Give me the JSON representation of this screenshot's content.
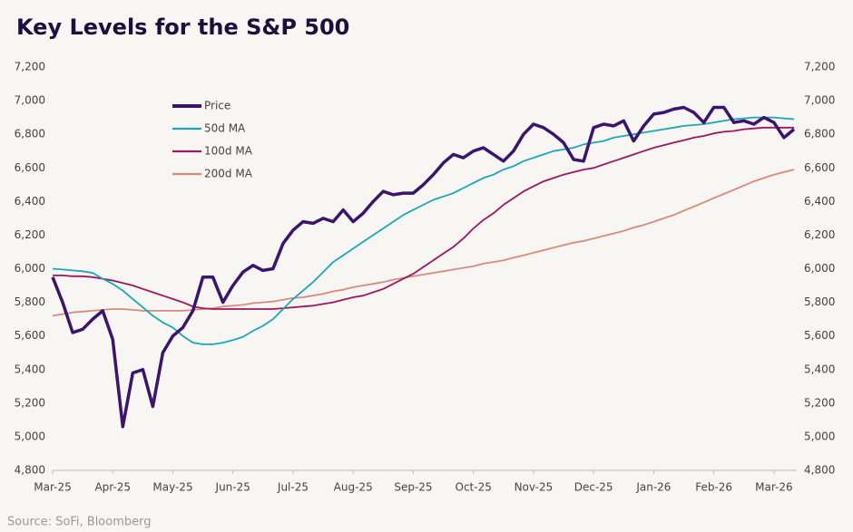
{
  "chart_data": {
    "type": "line",
    "title": "Key Levels for the S&P 500",
    "source": "Source: SoFi, Bloomberg",
    "categories": [
      "Mar-25",
      null,
      null,
      null,
      null,
      null,
      "Apr-25",
      null,
      null,
      null,
      null,
      null,
      "May-25",
      null,
      null,
      null,
      null,
      null,
      "Jun-25",
      null,
      null,
      null,
      null,
      null,
      "Jul-25",
      null,
      null,
      null,
      null,
      null,
      "Aug-25",
      null,
      null,
      null,
      null,
      null,
      "Sep-25",
      null,
      null,
      null,
      null,
      null,
      "Oct-25",
      null,
      null,
      null,
      null,
      null,
      "Nov-25",
      null,
      null,
      null,
      null,
      null,
      "Dec-25",
      null,
      null,
      null,
      null,
      null,
      "Jan-26",
      null,
      null,
      null,
      null,
      null,
      "Feb-26",
      null,
      null,
      null,
      null,
      null,
      "Mar-26",
      null,
      null
    ],
    "series": [
      {
        "name": "Price",
        "color": "#3a1470",
        "width": 3.5,
        "values": [
          5950,
          5800,
          5620,
          5640,
          5700,
          5750,
          5580,
          5060,
          5380,
          5400,
          5180,
          5500,
          5600,
          5650,
          5750,
          5950,
          5950,
          5800,
          5900,
          5980,
          6020,
          5990,
          6000,
          6150,
          6230,
          6280,
          6270,
          6300,
          6280,
          6350,
          6280,
          6330,
          6400,
          6460,
          6440,
          6450,
          6450,
          6500,
          6560,
          6630,
          6680,
          6660,
          6700,
          6720,
          6680,
          6640,
          6700,
          6800,
          6860,
          6840,
          6800,
          6750,
          6650,
          6640,
          6840,
          6860,
          6850,
          6880,
          6760,
          6850,
          6920,
          6930,
          6950,
          6960,
          6930,
          6870,
          6960,
          6960,
          6870,
          6880,
          6860,
          6900,
          6870,
          6780,
          6830
        ]
      },
      {
        "name": "50d MA",
        "color": "#1aa8b8",
        "width": 1.8,
        "values": [
          6000,
          5995,
          5990,
          5985,
          5975,
          5940,
          5910,
          5870,
          5820,
          5770,
          5720,
          5680,
          5650,
          5600,
          5560,
          5550,
          5550,
          5560,
          5575,
          5595,
          5630,
          5660,
          5700,
          5760,
          5820,
          5870,
          5920,
          5980,
          6040,
          6080,
          6120,
          6160,
          6200,
          6240,
          6280,
          6320,
          6350,
          6380,
          6410,
          6430,
          6450,
          6480,
          6510,
          6540,
          6560,
          6590,
          6610,
          6640,
          6660,
          6680,
          6700,
          6710,
          6720,
          6740,
          6750,
          6760,
          6780,
          6790,
          6800,
          6810,
          6820,
          6830,
          6840,
          6850,
          6855,
          6860,
          6870,
          6880,
          6890,
          6895,
          6900,
          6900,
          6900,
          6895,
          6890
        ]
      },
      {
        "name": "100d MA",
        "color": "#a0155f",
        "width": 1.8,
        "values": [
          5960,
          5960,
          5955,
          5955,
          5950,
          5940,
          5930,
          5915,
          5900,
          5880,
          5860,
          5840,
          5820,
          5800,
          5775,
          5765,
          5760,
          5760,
          5760,
          5760,
          5760,
          5760,
          5760,
          5765,
          5770,
          5775,
          5780,
          5790,
          5800,
          5815,
          5830,
          5840,
          5860,
          5880,
          5910,
          5940,
          5970,
          6010,
          6050,
          6090,
          6130,
          6180,
          6240,
          6290,
          6330,
          6380,
          6420,
          6460,
          6490,
          6520,
          6540,
          6560,
          6575,
          6590,
          6600,
          6620,
          6640,
          6660,
          6680,
          6700,
          6720,
          6735,
          6750,
          6765,
          6780,
          6790,
          6805,
          6815,
          6820,
          6830,
          6835,
          6840,
          6840,
          6840,
          6840
        ]
      },
      {
        "name": "200d MA",
        "color": "#d98a7a",
        "width": 1.8,
        "values": [
          5720,
          5730,
          5740,
          5745,
          5750,
          5755,
          5760,
          5760,
          5755,
          5750,
          5750,
          5750,
          5750,
          5750,
          5755,
          5760,
          5765,
          5775,
          5780,
          5785,
          5795,
          5800,
          5805,
          5815,
          5825,
          5830,
          5840,
          5850,
          5865,
          5875,
          5890,
          5900,
          5910,
          5920,
          5935,
          5945,
          5955,
          5965,
          5975,
          5985,
          5995,
          6005,
          6015,
          6030,
          6040,
          6050,
          6065,
          6080,
          6095,
          6110,
          6125,
          6140,
          6155,
          6165,
          6180,
          6195,
          6210,
          6225,
          6245,
          6260,
          6280,
          6300,
          6320,
          6345,
          6370,
          6395,
          6420,
          6445,
          6470,
          6495,
          6520,
          6540,
          6560,
          6575,
          6590
        ]
      }
    ],
    "ylim": [
      4800,
      7200
    ],
    "yticks": [
      {
        "value": 4800,
        "label": "4,800"
      },
      {
        "value": 5000,
        "label": "5,000"
      },
      {
        "value": 5200,
        "label": "5,200"
      },
      {
        "value": 5400,
        "label": "5,400"
      },
      {
        "value": 5600,
        "label": "5,600"
      },
      {
        "value": 5800,
        "label": "5,800"
      },
      {
        "value": 6000,
        "label": "6,000"
      },
      {
        "value": 6200,
        "label": "6,200"
      },
      {
        "value": 6400,
        "label": "6,400"
      },
      {
        "value": 6600,
        "label": "6,600"
      },
      {
        "value": 6800,
        "label": "6,800"
      },
      {
        "value": 7000,
        "label": "7,000"
      },
      {
        "value": 7200,
        "label": "7,200"
      }
    ],
    "y2lim": [
      4800,
      7200
    ],
    "y2ticks": [
      {
        "value": 4800,
        "label": "4,800"
      },
      {
        "value": 5000,
        "label": "5,000"
      },
      {
        "value": 5200,
        "label": "5,200"
      },
      {
        "value": 5400,
        "label": "5,400"
      },
      {
        "value": 5600,
        "label": "5,600"
      },
      {
        "value": 5800,
        "label": "5,800"
      },
      {
        "value": 6000,
        "label": "6,000"
      },
      {
        "value": 6200,
        "label": "6,200"
      },
      {
        "value": 6400,
        "label": "6,400"
      },
      {
        "value": 6600,
        "label": "6,600"
      },
      {
        "value": 6800,
        "label": "6,800"
      },
      {
        "value": 7000,
        "label": "7,000"
      },
      {
        "value": 7200,
        "label": "7,200"
      }
    ],
    "grid": false,
    "legend": "upper-left"
  }
}
